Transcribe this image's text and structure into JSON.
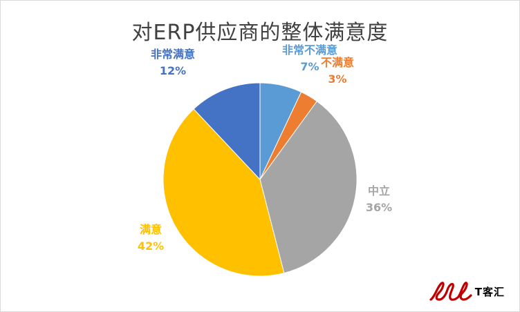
{
  "chart_data": {
    "type": "pie",
    "title": "对ERP供应商的整体满意度",
    "categories": [
      "非常不满意",
      "不满意",
      "中立",
      "满意",
      "非常满意"
    ],
    "values": [
      7,
      3,
      36,
      42,
      12
    ],
    "value_labels": [
      "7%",
      "3%",
      "36%",
      "42%",
      "12%"
    ],
    "colors": [
      "#5b9bd5",
      "#ed7d31",
      "#a5a5a5",
      "#ffc000",
      "#4472c4"
    ],
    "start_angle_deg": 0,
    "direction": "clockwise",
    "legend": "none"
  },
  "watermark": {
    "text": "T客汇",
    "color": "#c00000"
  }
}
